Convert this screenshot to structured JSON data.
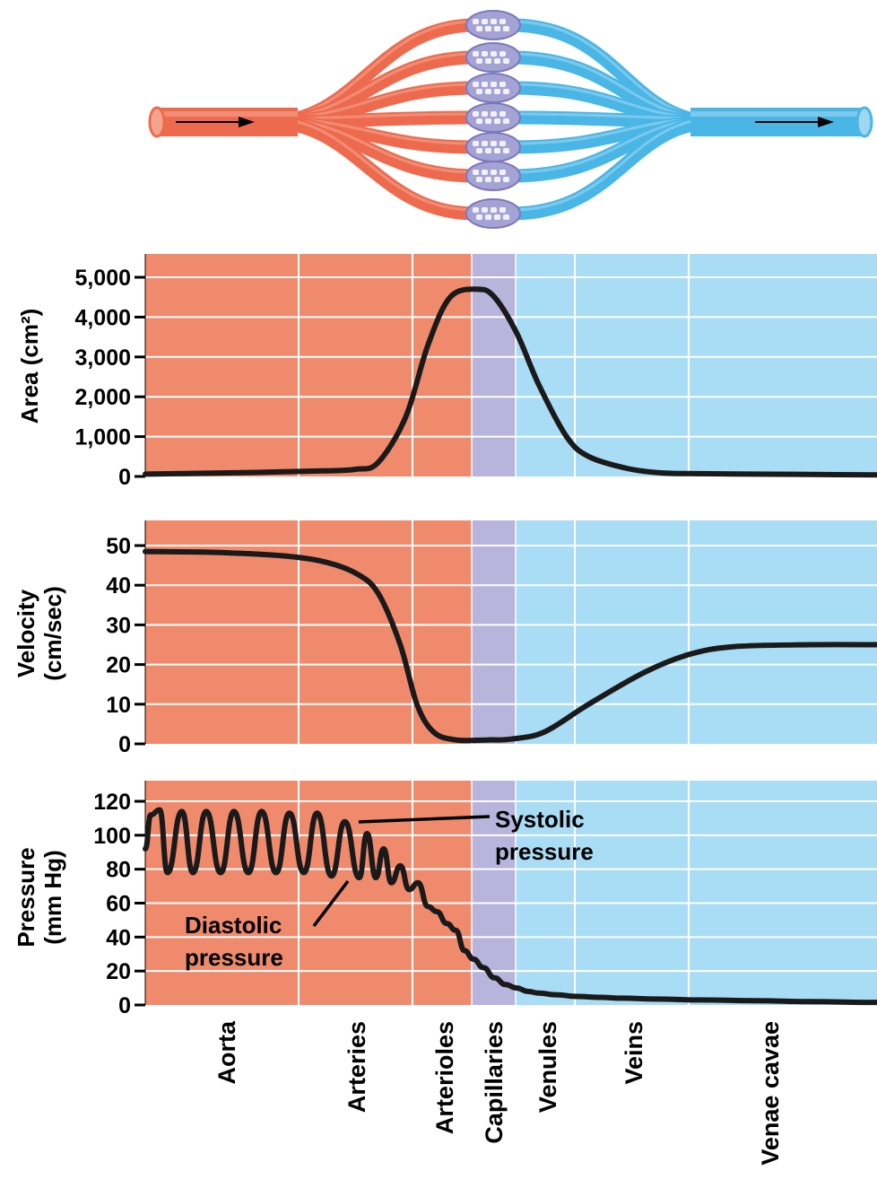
{
  "colors": {
    "artery": "#ee6a4e",
    "artery_light": "#f4a58e",
    "vein": "#49b6e6",
    "vein_light": "#9fd6f2",
    "capillary": "#a5a3d6",
    "panel_artery": "#f08a6c",
    "panel_capillary": "#b8b4dc",
    "panel_vein": "#a9dcf5",
    "curve": "#1a1a1a"
  },
  "categories": [
    "Aorta",
    "Arteries",
    "Arterioles",
    "Capillaries",
    "Venules",
    "Veins",
    "Venae cavae"
  ],
  "chart_data": [
    {
      "type": "line",
      "ylabel": "Area (cm²)",
      "ylim": [
        0,
        5000
      ],
      "yticks": [
        0,
        1000,
        2000,
        3000,
        4000,
        5000
      ],
      "ytick_labels": [
        "0",
        "1,000",
        "2,000",
        "3,000",
        "4,000",
        "5,000"
      ],
      "x": [
        0,
        1.0,
        1.6,
        1.9,
        2.1,
        2.35,
        2.55,
        2.75,
        3.0,
        3.15,
        3.35,
        3.55,
        3.8,
        4.0,
        4.35,
        4.65,
        5.0,
        5.5,
        6.0,
        6.6
      ],
      "values": [
        60,
        100,
        140,
        180,
        350,
        1500,
        3300,
        4500,
        4700,
        4500,
        3600,
        2300,
        1000,
        500,
        200,
        90,
        70,
        60,
        50,
        40
      ]
    },
    {
      "type": "line",
      "ylabel": "Velocity (cm/sec)",
      "ylim": [
        0,
        50
      ],
      "yticks": [
        0,
        10,
        20,
        30,
        40,
        50
      ],
      "ytick_labels": [
        "0",
        "10",
        "20",
        "30",
        "40",
        "50"
      ],
      "x": [
        0,
        0.6,
        1.2,
        1.6,
        1.9,
        2.1,
        2.3,
        2.45,
        2.6,
        2.8,
        3.1,
        3.3,
        3.6,
        4.0,
        4.5,
        4.9,
        5.3,
        6.0,
        6.6
      ],
      "values": [
        48.5,
        48.3,
        47.5,
        46,
        43,
        38,
        25,
        10,
        3,
        1,
        1,
        1.2,
        3,
        10,
        18,
        22.5,
        24.5,
        25,
        25
      ]
    },
    {
      "type": "line",
      "ylabel": "Pressure (mm Hg)",
      "ylim": [
        0,
        120
      ],
      "yticks": [
        0,
        20,
        40,
        60,
        80,
        100,
        120
      ],
      "ytick_labels": [
        "0",
        "20",
        "40",
        "60",
        "80",
        "100",
        "120"
      ],
      "annotations": {
        "systolic": "Systolic pressure",
        "diastolic": "Diastolic pressure"
      },
      "x": [
        0,
        0.05,
        0.13,
        0.2,
        0.33,
        0.43,
        0.55,
        0.68,
        0.8,
        0.93,
        1.05,
        1.18,
        1.3,
        1.43,
        1.55,
        1.68,
        1.8,
        1.93,
        2.0,
        2.08,
        2.15,
        2.22,
        2.3,
        2.38,
        2.46,
        2.55,
        2.63,
        2.72,
        2.8,
        2.88,
        2.96,
        3.05,
        3.15,
        3.25,
        3.35,
        3.45,
        3.55,
        3.7,
        3.9,
        4.1,
        4.3,
        4.6,
        5.0,
        5.5,
        6.0,
        6.6
      ],
      "values": [
        92,
        112,
        115,
        78,
        114,
        78,
        114,
        78,
        114,
        78,
        114,
        78,
        113,
        78,
        113,
        76,
        108,
        75,
        101,
        75,
        92,
        72,
        82,
        68,
        72,
        58,
        55,
        48,
        44,
        32,
        27,
        22,
        16,
        12,
        10,
        8,
        7,
        6,
        5,
        4.5,
        4,
        3.5,
        3,
        2.5,
        2,
        1.5
      ]
    }
  ]
}
